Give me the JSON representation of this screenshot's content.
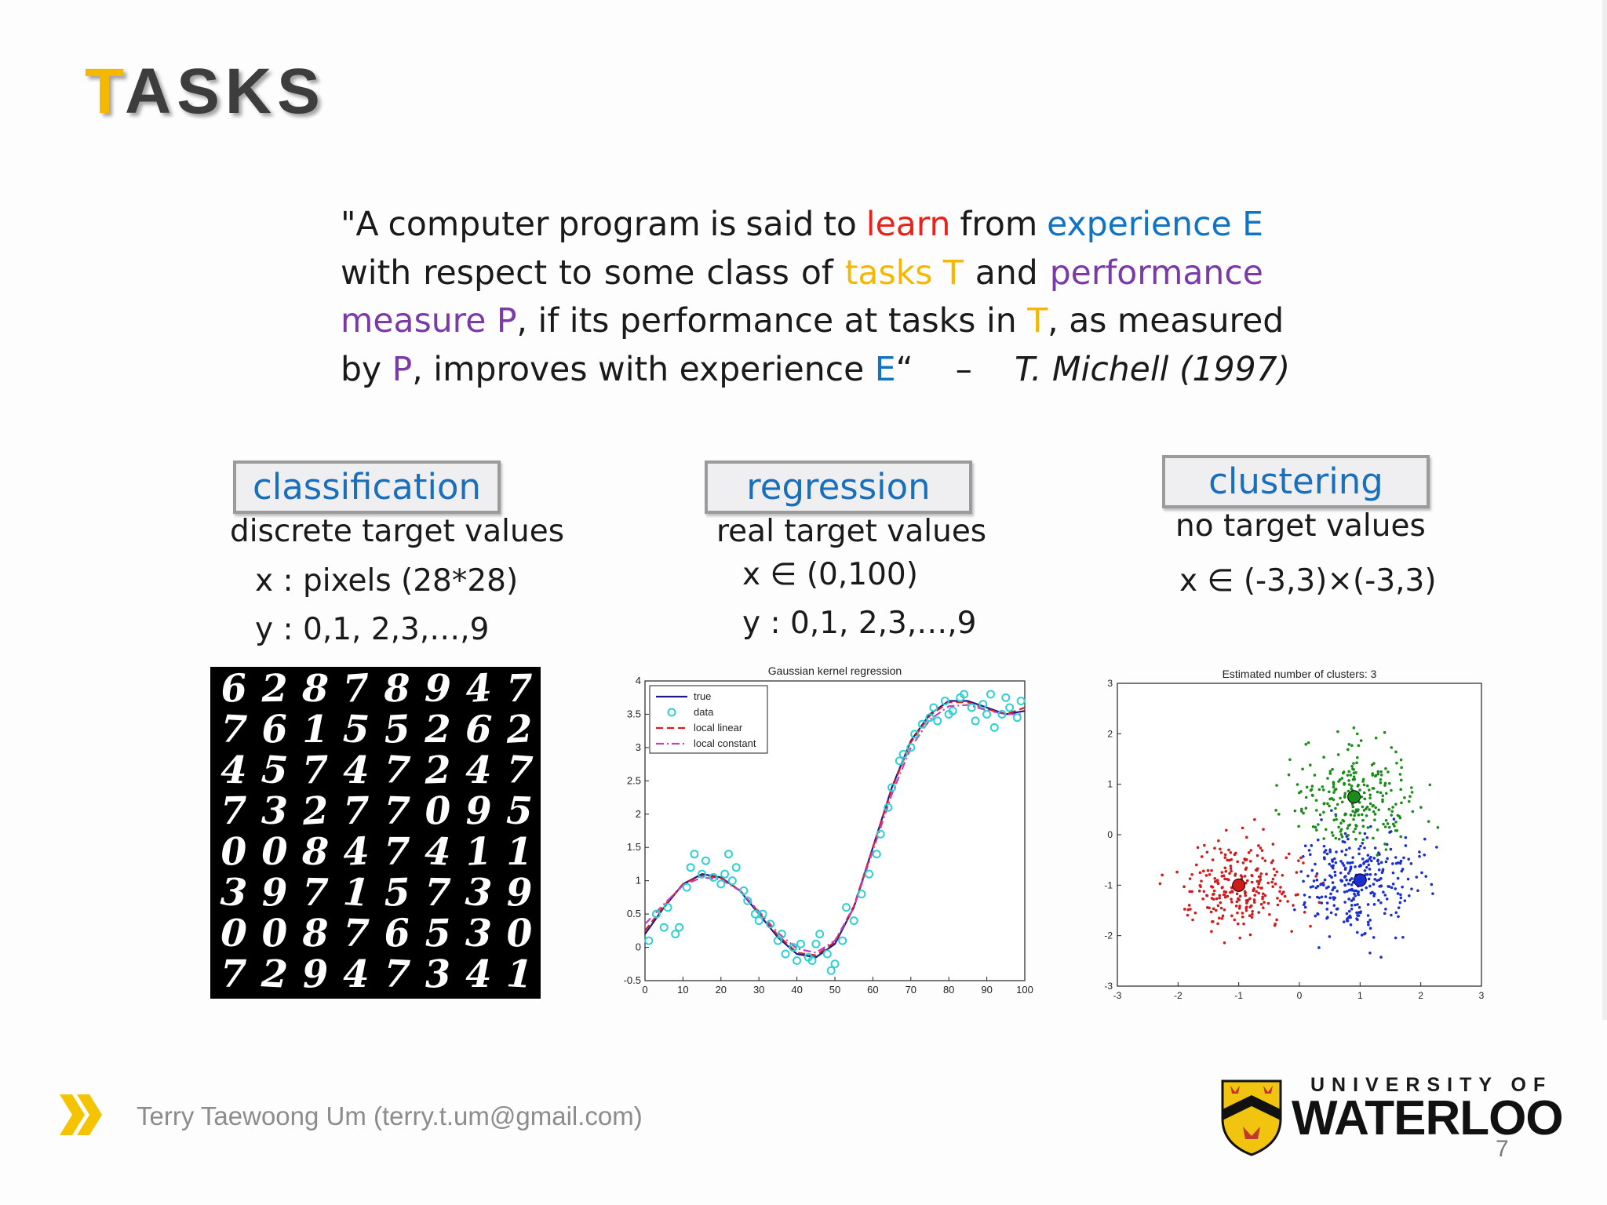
{
  "slide": {
    "title_first": "T",
    "title_rest": "ASKS",
    "quote_lines": [
      [
        {
          "t": "\"A",
          "c": ""
        },
        {
          "t": "computer",
          "c": ""
        },
        {
          "t": "program",
          "c": ""
        },
        {
          "t": "is",
          "c": ""
        },
        {
          "t": "said",
          "c": ""
        },
        {
          "t": "to",
          "c": ""
        },
        {
          "t": "learn",
          "c": "red"
        },
        {
          "t": "from",
          "c": ""
        },
        {
          "t": "experience E",
          "c": "blue"
        }
      ],
      [
        {
          "t": "with",
          "c": ""
        },
        {
          "t": "respect",
          "c": ""
        },
        {
          "t": "to",
          "c": ""
        },
        {
          "t": "some",
          "c": ""
        },
        {
          "t": "class",
          "c": ""
        },
        {
          "t": "of",
          "c": ""
        },
        {
          "t": "tasks T",
          "c": "yellow"
        },
        {
          "t": "and",
          "c": ""
        },
        {
          "t": "performance",
          "c": "purple"
        }
      ],
      [
        {
          "t": "measure P",
          "c": "purple"
        },
        {
          "t": ", if its performance at tasks in ",
          "c": ""
        },
        {
          "t": "T",
          "c": "yellow"
        },
        {
          "t": ", as measured",
          "c": ""
        }
      ],
      [
        {
          "t": "by ",
          "c": ""
        },
        {
          "t": "P",
          "c": "purple"
        },
        {
          "t": ", improves with experience ",
          "c": ""
        },
        {
          "t": "E",
          "c": "blue"
        },
        {
          "t": "“    –    ",
          "c": ""
        },
        {
          "t": "T. Michell (1997)",
          "c": "ital"
        }
      ]
    ]
  },
  "tasks": {
    "classification": {
      "label": "classification",
      "desc": "discrete target values",
      "x": "x : pixels (28*28)",
      "y": "y : 0,1, 2,3,…,9"
    },
    "regression": {
      "label": "regression",
      "desc": "real target values",
      "x": "x ∈ (0,100)",
      "y": "y : 0,1, 2,3,…,9"
    },
    "clustering": {
      "label": "clustering",
      "desc": "no target values",
      "x": "x ∈ (-3,3)×(-3,3)"
    }
  },
  "mnist_digits": [
    [
      6,
      2,
      8,
      7,
      8,
      9,
      4,
      7
    ],
    [
      7,
      6,
      1,
      5,
      5,
      2,
      6,
      2
    ],
    [
      4,
      5,
      7,
      4,
      7,
      2,
      4,
      7
    ],
    [
      7,
      3,
      2,
      7,
      7,
      0,
      9,
      5
    ],
    [
      0,
      0,
      8,
      4,
      7,
      4,
      1,
      1
    ],
    [
      3,
      9,
      7,
      1,
      5,
      7,
      3,
      9
    ],
    [
      0,
      0,
      8,
      7,
      6,
      5,
      3,
      0
    ],
    [
      7,
      2,
      9,
      4,
      7,
      3,
      4,
      1
    ]
  ],
  "chart_data": [
    {
      "type": "line",
      "title": "Gaussian kernel regression",
      "xlim": [
        0,
        100
      ],
      "ylim": [
        -0.5,
        4
      ],
      "xticks": [
        0,
        10,
        20,
        30,
        40,
        50,
        60,
        70,
        80,
        90,
        100
      ],
      "yticks": [
        -0.5,
        0,
        0.5,
        1,
        1.5,
        2,
        2.5,
        3,
        3.5,
        4
      ],
      "legend": [
        "true",
        "data",
        "local linear",
        "local constant"
      ],
      "legend_position": "top-left",
      "series": [
        {
          "name": "true",
          "color": "#1a1a8c",
          "x": [
            0,
            5,
            10,
            15,
            20,
            25,
            30,
            35,
            40,
            45,
            50,
            55,
            60,
            65,
            70,
            75,
            80,
            85,
            90,
            95,
            100
          ],
          "y": [
            0.2,
            0.6,
            0.95,
            1.1,
            1.05,
            0.85,
            0.5,
            0.15,
            -0.1,
            -0.15,
            0.05,
            0.6,
            1.5,
            2.4,
            3.1,
            3.5,
            3.7,
            3.7,
            3.6,
            3.5,
            3.55
          ]
        },
        {
          "name": "local linear",
          "color": "#d62020",
          "x": [
            0,
            5,
            10,
            15,
            20,
            25,
            30,
            35,
            40,
            45,
            50,
            55,
            60,
            65,
            70,
            75,
            80,
            85,
            90,
            95,
            100
          ],
          "y": [
            0.25,
            0.62,
            0.95,
            1.08,
            1.04,
            0.86,
            0.52,
            0.18,
            -0.08,
            -0.12,
            0.08,
            0.62,
            1.5,
            2.38,
            3.08,
            3.48,
            3.68,
            3.68,
            3.58,
            3.5,
            3.6
          ]
        },
        {
          "name": "local constant",
          "color": "#c040c0",
          "x": [
            0,
            5,
            10,
            15,
            20,
            25,
            30,
            35,
            40,
            45,
            50,
            55,
            60,
            65,
            70,
            75,
            80,
            85,
            90,
            95,
            100
          ],
          "y": [
            0.35,
            0.65,
            0.93,
            1.05,
            1.02,
            0.85,
            0.54,
            0.22,
            -0.02,
            -0.08,
            0.1,
            0.6,
            1.45,
            2.3,
            3.0,
            3.42,
            3.62,
            3.64,
            3.56,
            3.5,
            3.5
          ]
        },
        {
          "name": "data",
          "color": "#2fd0d0",
          "x": [
            1,
            3,
            5,
            6,
            8,
            9,
            11,
            12,
            13,
            15,
            16,
            18,
            20,
            21,
            22,
            23,
            24,
            26,
            27,
            29,
            30,
            31,
            33,
            35,
            36,
            37,
            39,
            40,
            41,
            43,
            44,
            45,
            46,
            48,
            49,
            50,
            52,
            53,
            55,
            57,
            59,
            61,
            62,
            64,
            65,
            67,
            68,
            70,
            71,
            73,
            75,
            76,
            77,
            79,
            80,
            81,
            83,
            84,
            86,
            87,
            89,
            90,
            91,
            92,
            94,
            95,
            96,
            98,
            99
          ],
          "y": [
            0.1,
            0.5,
            0.3,
            0.6,
            0.2,
            0.3,
            0.9,
            1.2,
            1.4,
            1.1,
            1.3,
            1.05,
            0.95,
            1.1,
            1.4,
            1.0,
            1.2,
            0.85,
            0.7,
            0.5,
            0.4,
            0.5,
            0.35,
            0.1,
            0.2,
            -0.1,
            0.0,
            -0.2,
            0.05,
            -0.15,
            -0.2,
            0.05,
            0.2,
            -0.1,
            -0.35,
            -0.25,
            0.1,
            0.6,
            0.4,
            0.8,
            1.1,
            1.4,
            1.7,
            2.1,
            2.4,
            2.8,
            2.9,
            3.0,
            3.2,
            3.35,
            3.45,
            3.6,
            3.4,
            3.7,
            3.5,
            3.55,
            3.75,
            3.8,
            3.6,
            3.4,
            3.65,
            3.5,
            3.8,
            3.3,
            3.5,
            3.75,
            3.6,
            3.45,
            3.7
          ]
        }
      ]
    },
    {
      "type": "scatter",
      "title": "Estimated number of clusters: 3",
      "xlim": [
        -3,
        3
      ],
      "ylim": [
        -3,
        3
      ],
      "xticks": [
        -3,
        -2,
        -1,
        0,
        1,
        2,
        3
      ],
      "yticks": [
        -3,
        -2,
        -1,
        0,
        1,
        2,
        3
      ],
      "series": [
        {
          "name": "",
          "color": "#d11a1a",
          "center": [
            -1,
            -1
          ],
          "spread": 0.45,
          "n": 250,
          "seed": 11
        },
        {
          "name": "",
          "color": "#1a2ed1",
          "center": [
            1,
            -0.9
          ],
          "spread": 0.5,
          "n": 300,
          "seed": 23
        },
        {
          "name": "",
          "color": "#1a8c1a",
          "center": [
            0.9,
            0.75
          ],
          "spread": 0.5,
          "n": 250,
          "seed": 37
        }
      ]
    }
  ],
  "footer": {
    "author": "Terry Taewoong Um (terry.t.um@gmail.com)",
    "univ_top": "UNIVERSITY OF",
    "univ_name": "WATERLOO",
    "page": "7"
  },
  "colors": {
    "accent": "#f5b800",
    "learn": "#e8231a",
    "experience": "#1173c3",
    "performance": "#7a3aa8"
  }
}
